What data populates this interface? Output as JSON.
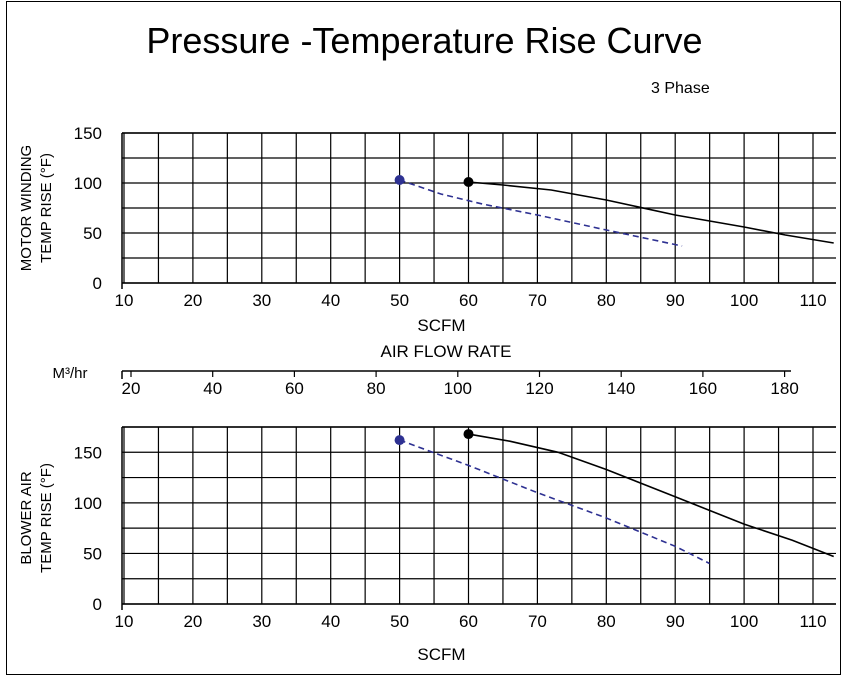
{
  "title": "Pressure -Temperature Rise Curve",
  "subtitle": "3 Phase",
  "colors": {
    "series_blue": "#2e3192",
    "series_black": "#000000",
    "grid": "#000000"
  },
  "chart_data": [
    {
      "type": "line",
      "ylabel": [
        "MOTOR WINDING",
        "TEMP RISE (°F)"
      ],
      "xlabel": "SCFM",
      "x_ticks": [
        10,
        20,
        30,
        40,
        50,
        60,
        70,
        80,
        90,
        100,
        110
      ],
      "y_ticks": [
        0,
        50,
        100,
        150
      ],
      "xlim": [
        10,
        113
      ],
      "ylim": [
        0,
        150
      ],
      "grid": true,
      "series": [
        {
          "style": "dashed",
          "color": "#2e3192",
          "marker_at_start": true,
          "x": [
            50,
            56,
            62,
            70,
            80,
            91
          ],
          "y": [
            103,
            89,
            79,
            68,
            53,
            37
          ]
        },
        {
          "style": "solid",
          "color": "#000000",
          "marker_at_start": true,
          "x": [
            60,
            65,
            72,
            80,
            90,
            100,
            106,
            113
          ],
          "y": [
            101,
            98,
            93,
            83,
            68,
            56,
            48,
            40
          ]
        }
      ]
    },
    {
      "type": "axis",
      "unit_label": "M³/hr",
      "title": "AIR FLOW RATE",
      "ticks": [
        20,
        40,
        60,
        80,
        100,
        120,
        140,
        160,
        180
      ]
    },
    {
      "type": "line",
      "ylabel": [
        "BLOWER AIR",
        "TEMP RISE (°F)"
      ],
      "xlabel": "SCFM",
      "x_ticks": [
        10,
        20,
        30,
        40,
        50,
        60,
        70,
        80,
        90,
        100,
        110
      ],
      "y_ticks": [
        0,
        50,
        100,
        150
      ],
      "xlim": [
        10,
        113
      ],
      "ylim": [
        0,
        175
      ],
      "grid": true,
      "series": [
        {
          "style": "dashed",
          "color": "#2e3192",
          "marker_at_start": true,
          "x": [
            50,
            60,
            70,
            80,
            90,
            95
          ],
          "y": [
            162,
            137,
            110,
            85,
            57,
            40
          ]
        },
        {
          "style": "solid",
          "color": "#000000",
          "marker_at_start": true,
          "x": [
            60,
            66,
            73,
            80,
            90,
            100,
            107,
            113
          ],
          "y": [
            168,
            161,
            150,
            133,
            106,
            79,
            63,
            47
          ]
        }
      ]
    }
  ]
}
